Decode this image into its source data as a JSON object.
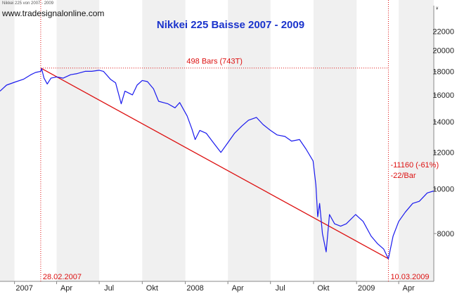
{
  "header": {
    "caption": "Nikkei 225 von 2007 - 2009",
    "website": "www.tradesignalonline.com",
    "currency_symbol": "¥"
  },
  "chart_data": {
    "type": "line",
    "title": "Nikkei 225 Baisse 2007 - 2009",
    "xlabel": "",
    "ylabel": "",
    "y_scale": "log",
    "ylim": [
      6300,
      25000
    ],
    "x_range": [
      "2006-12-01",
      "2009-06-15"
    ],
    "grid": false,
    "colors": {
      "series": "#1a1aee",
      "annotation": "#dd1111",
      "band": "#f0f0f0"
    },
    "x_ticks": [
      {
        "date": "2007-01-01",
        "label": "2007"
      },
      {
        "date": "2007-04-01",
        "label": "Apr"
      },
      {
        "date": "2007-07-01",
        "label": "Jul"
      },
      {
        "date": "2007-10-01",
        "label": "Okt"
      },
      {
        "date": "2008-01-01",
        "label": "2008"
      },
      {
        "date": "2008-04-01",
        "label": "Apr"
      },
      {
        "date": "2008-07-01",
        "label": "Jul"
      },
      {
        "date": "2008-10-01",
        "label": "Okt"
      },
      {
        "date": "2009-01-01",
        "label": "2009"
      },
      {
        "date": "2009-04-01",
        "label": "Apr"
      }
    ],
    "y_ticks": [
      {
        "value": 8000,
        "label": "8000"
      },
      {
        "value": 10000,
        "label": "10000"
      },
      {
        "value": 12000,
        "label": "12000"
      },
      {
        "value": 14000,
        "label": "14000"
      },
      {
        "value": 16000,
        "label": "16000"
      },
      {
        "value": 18000,
        "label": "18000"
      },
      {
        "value": 20000,
        "label": "20000"
      },
      {
        "value": 22000,
        "label": "22000"
      }
    ],
    "series": [
      {
        "x": [
          "2006-12-01",
          "2006-12-15",
          "2007-01-05",
          "2007-01-20",
          "2007-02-05",
          "2007-02-15",
          "2007-02-26",
          "2007-02-28",
          "2007-03-05",
          "2007-03-12",
          "2007-03-20",
          "2007-04-01",
          "2007-04-15",
          "2007-05-01",
          "2007-05-15",
          "2007-06-01",
          "2007-06-15",
          "2007-07-01",
          "2007-07-10",
          "2007-07-25",
          "2007-08-05",
          "2007-08-17",
          "2007-08-25",
          "2007-09-10",
          "2007-09-20",
          "2007-10-01",
          "2007-10-12",
          "2007-10-25",
          "2007-11-05",
          "2007-11-15",
          "2007-11-25",
          "2007-12-10",
          "2007-12-20",
          "2008-01-05",
          "2008-01-15",
          "2008-01-22",
          "2008-02-01",
          "2008-02-15",
          "2008-03-01",
          "2008-03-17",
          "2008-04-01",
          "2008-04-15",
          "2008-05-01",
          "2008-05-15",
          "2008-06-01",
          "2008-06-15",
          "2008-07-01",
          "2008-07-15",
          "2008-08-01",
          "2008-08-15",
          "2008-09-01",
          "2008-09-15",
          "2008-09-30",
          "2008-10-06",
          "2008-10-10",
          "2008-10-14",
          "2008-10-20",
          "2008-10-28",
          "2008-11-04",
          "2008-11-15",
          "2008-11-28",
          "2008-12-10",
          "2008-12-30",
          "2009-01-15",
          "2009-02-01",
          "2009-02-15",
          "2009-02-28",
          "2009-03-10",
          "2009-03-20",
          "2009-04-01",
          "2009-04-15",
          "2009-05-01",
          "2009-05-15",
          "2009-06-01",
          "2009-06-15"
        ],
        "y": [
          16300,
          16800,
          17100,
          17300,
          17700,
          17900,
          18000,
          18250,
          17400,
          16900,
          17400,
          17500,
          17400,
          17700,
          17800,
          18000,
          18000,
          18100,
          18000,
          17300,
          17000,
          15300,
          16300,
          16000,
          16800,
          17200,
          17100,
          16500,
          15500,
          15400,
          15300,
          15000,
          15400,
          14400,
          13500,
          12800,
          13400,
          13200,
          12600,
          12000,
          12600,
          13200,
          13700,
          14100,
          14300,
          13800,
          13400,
          13100,
          13000,
          12700,
          12800,
          12200,
          11500,
          10200,
          8700,
          9300,
          8000,
          7300,
          8800,
          8400,
          8300,
          8400,
          8800,
          8500,
          7900,
          7600,
          7400,
          7050,
          7900,
          8500,
          8900,
          9300,
          9400,
          9800,
          9900
        ]
      }
    ],
    "trendline": {
      "start": {
        "date": "2007-02-26",
        "value": 18300
      },
      "end": {
        "date": "2009-03-10",
        "value": 7054
      }
    },
    "annotations": {
      "bars_label": "498 Bars (743T)",
      "change_label": "-11160 (-61%)",
      "per_bar_label": "-22/Bar",
      "start_label": "28.02.2007",
      "end_label": "10.03.2009"
    }
  }
}
